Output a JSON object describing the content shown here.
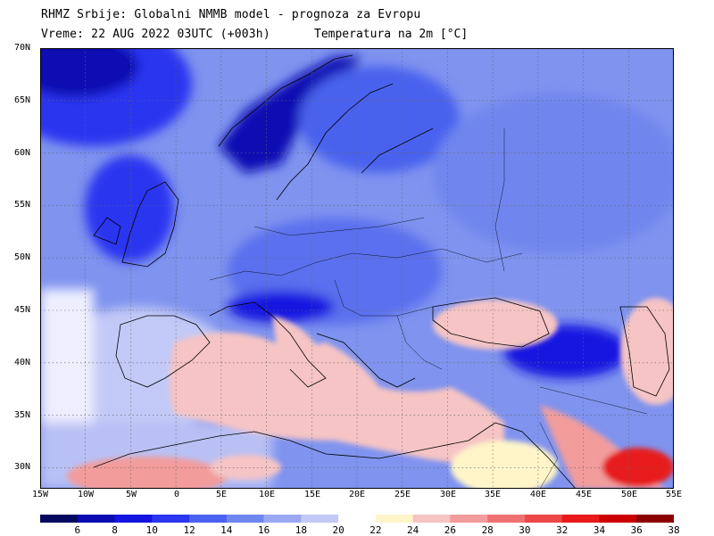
{
  "header": {
    "line1": "RHMZ Srbije: Globalni NMMB model - prognoza za Evropu",
    "line2": "Vreme: 22 AUG 2022 03UTC (+003h)",
    "line2b": "Temperatura na 2m [°C]"
  },
  "map": {
    "lat_labels": [
      "70N",
      "65N",
      "60N",
      "55N",
      "50N",
      "45N",
      "40N",
      "35N",
      "30N"
    ],
    "lon_labels": [
      "15W",
      "10W",
      "5W",
      "0",
      "5E",
      "10E",
      "15E",
      "20E",
      "25E",
      "30E",
      "35E",
      "40E",
      "45E",
      "50E",
      "55E"
    ],
    "lat_range": [
      28,
      70
    ],
    "lon_range": [
      -15,
      55
    ],
    "grid": "dotted"
  },
  "legend": {
    "labels": [
      "6",
      "8",
      "10",
      "12",
      "14",
      "16",
      "18",
      "20",
      "22",
      "24",
      "26",
      "28",
      "30",
      "32",
      "34",
      "36",
      "38"
    ],
    "colors": [
      "#06075f",
      "#0b0bb2",
      "#1414e0",
      "#2a36f0",
      "#4a62ee",
      "#6f86ee",
      "#9aa8f2",
      "#c3c9f6",
      "#ffffff",
      "#fff5c8",
      "#f6c4c4",
      "#f29c9c",
      "#ef7272",
      "#ec4848",
      "#e81a1a",
      "#cc0000",
      "#8b0000"
    ]
  }
}
